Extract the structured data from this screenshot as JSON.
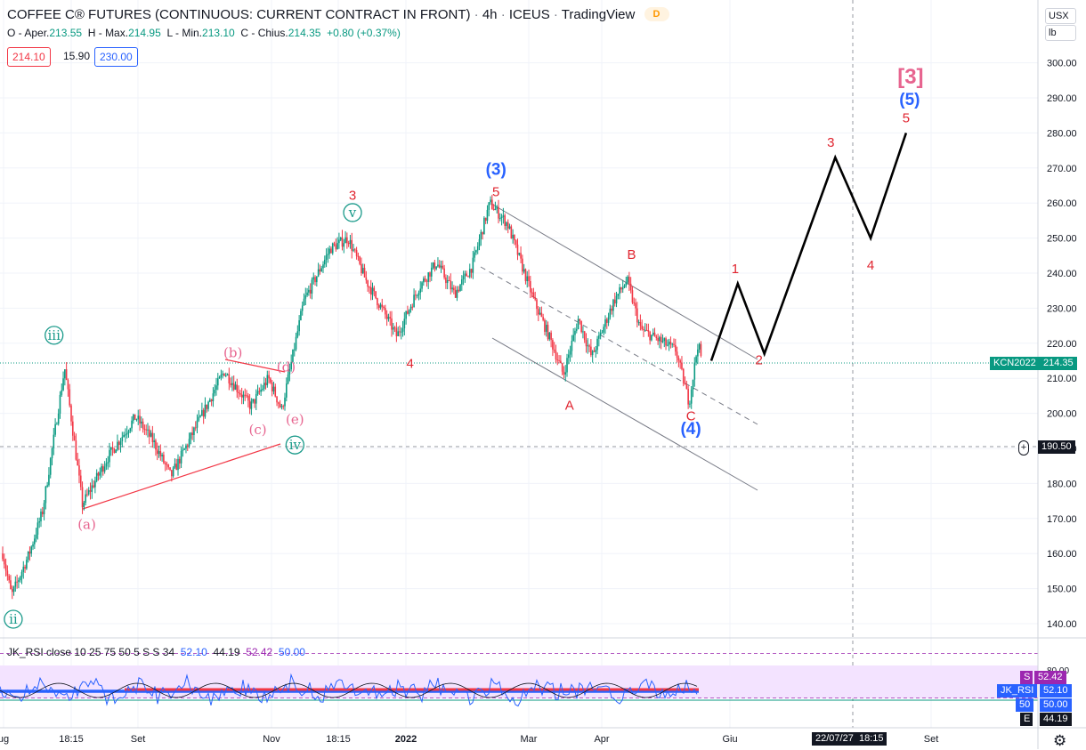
{
  "header": {
    "title": "COFFEE C® FUTURES (CONTINUOUS: CURRENT CONTRACT IN FRONT)",
    "interval": "4h",
    "exchange": "ICEUS",
    "platform": "TradingView",
    "badge": "D"
  },
  "ohlc": {
    "o_label": "O - Aper.",
    "o": "213.55",
    "h_label": "H - Max.",
    "h": "214.95",
    "l_label": "L - Min.",
    "l": "213.10",
    "c_label": "C - Chius.",
    "c": "214.35",
    "change": "+0.80 (+0.37%)"
  },
  "trade_box": {
    "bid": "214.10",
    "spread": "15.90",
    "ask": "230.00"
  },
  "price_scale": {
    "currency": "USX",
    "unit": "lb"
  },
  "colors": {
    "up": "#089981",
    "down": "#f23645",
    "wave_red": "#e0242f",
    "wave_pink": "#e7648f",
    "wave_teal": "#1a9a8a",
    "wave_blue": "#2962ff",
    "path": "#000000",
    "channel": "#787b86",
    "rsi_line": "#2962ff",
    "rsi_band": "#f3e3ff"
  },
  "chart_data": {
    "type": "candlestick",
    "title": "COFFEE C® FUTURES (CONTINUOUS: CURRENT CONTRACT IN FRONT)",
    "ylim": [
      134,
      312
    ],
    "y_ticks": [
      140,
      150,
      160,
      170,
      180,
      190,
      200,
      210,
      220,
      230,
      240,
      250,
      260,
      270,
      280,
      290,
      300
    ],
    "x_ticks": [
      "ug",
      "18:15",
      "Set",
      "Nov",
      "18:15",
      "2022",
      "Mar",
      "Apr",
      "Giu",
      "Set"
    ],
    "grid": true,
    "price_anchors": [
      {
        "t": 0.0,
        "p": 160
      },
      {
        "t": 1.0,
        "p": 148
      },
      {
        "t": 3.0,
        "p": 160
      },
      {
        "t": 4.5,
        "p": 172
      },
      {
        "t": 7.0,
        "p": 213
      },
      {
        "t": 9.0,
        "p": 174
      },
      {
        "t": 12.0,
        "p": 188
      },
      {
        "t": 15.0,
        "p": 199
      },
      {
        "t": 17.0,
        "p": 192
      },
      {
        "t": 19.0,
        "p": 182
      },
      {
        "t": 22.0,
        "p": 197
      },
      {
        "t": 25.0,
        "p": 212
      },
      {
        "t": 28.0,
        "p": 202
      },
      {
        "t": 30.0,
        "p": 210
      },
      {
        "t": 31.5,
        "p": 201
      },
      {
        "t": 34.0,
        "p": 232
      },
      {
        "t": 37.0,
        "p": 247
      },
      {
        "t": 39.0,
        "p": 250
      },
      {
        "t": 41.0,
        "p": 238
      },
      {
        "t": 43.0,
        "p": 229
      },
      {
        "t": 44.5,
        "p": 222
      },
      {
        "t": 47.0,
        "p": 236
      },
      {
        "t": 49.0,
        "p": 243
      },
      {
        "t": 51.0,
        "p": 234
      },
      {
        "t": 53.0,
        "p": 242
      },
      {
        "t": 55.0,
        "p": 260
      },
      {
        "t": 57.0,
        "p": 254
      },
      {
        "t": 60.0,
        "p": 232
      },
      {
        "t": 62.0,
        "p": 220
      },
      {
        "t": 63.3,
        "p": 211
      },
      {
        "t": 65.0,
        "p": 227
      },
      {
        "t": 66.5,
        "p": 216
      },
      {
        "t": 69.0,
        "p": 232
      },
      {
        "t": 70.5,
        "p": 238
      },
      {
        "t": 72.0,
        "p": 224
      },
      {
        "t": 74.0,
        "p": 221
      },
      {
        "t": 76.0,
        "p": 218
      },
      {
        "t": 77.5,
        "p": 203
      },
      {
        "t": 78.5,
        "p": 220
      },
      {
        "t": 79.0,
        "p": 214.35
      }
    ],
    "last_price": "214.35",
    "symbol_tag": "KCN2022",
    "crosshair": {
      "price": "190.50",
      "date": "22/07/27",
      "time": "18:15"
    },
    "projection_path": [
      {
        "t": 80,
        "p": 215
      },
      {
        "t": 83,
        "p": 237
      },
      {
        "t": 86,
        "p": 217
      },
      {
        "t": 94,
        "p": 273
      },
      {
        "t": 98,
        "p": 250
      },
      {
        "t": 102,
        "p": 280
      }
    ],
    "wave_labels": [
      {
        "text": "ii",
        "t": 1.2,
        "p": 140,
        "style": "teal-circle"
      },
      {
        "text": "iii",
        "t": 5.8,
        "p": 221,
        "style": "teal-circle"
      },
      {
        "text": "iv",
        "t": 33.0,
        "p": 189.7,
        "style": "teal-circle"
      },
      {
        "text": "v",
        "t": 39.5,
        "p": 256,
        "style": "teal-circle"
      },
      {
        "text": "(a)",
        "t": 9.5,
        "p": 167,
        "style": "pink"
      },
      {
        "text": "(b)",
        "t": 26.0,
        "p": 216,
        "style": "pink"
      },
      {
        "text": "(c)",
        "t": 28.8,
        "p": 194,
        "style": "pink"
      },
      {
        "text": "(d)",
        "t": 32.0,
        "p": 212,
        "style": "pink"
      },
      {
        "text": "(e)",
        "t": 33.0,
        "p": 197,
        "style": "pink"
      },
      {
        "text": "3",
        "t": 39.5,
        "p": 261,
        "style": "red"
      },
      {
        "text": "4",
        "t": 46.0,
        "p": 213,
        "style": "red"
      },
      {
        "text": "(3)",
        "t": 55.7,
        "p": 268,
        "style": "blue"
      },
      {
        "text": "5",
        "t": 55.7,
        "p": 262,
        "style": "red"
      },
      {
        "text": "B",
        "t": 71.0,
        "p": 244,
        "style": "red"
      },
      {
        "text": "A",
        "t": 64.0,
        "p": 201,
        "style": "red"
      },
      {
        "text": "C",
        "t": 77.7,
        "p": 198,
        "style": "red"
      },
      {
        "text": "(4)",
        "t": 77.7,
        "p": 194,
        "style": "blue"
      },
      {
        "text": "1",
        "t": 82.7,
        "p": 240,
        "style": "red"
      },
      {
        "text": "2",
        "t": 85.4,
        "p": 214,
        "style": "red"
      },
      {
        "text": "3",
        "t": 93.5,
        "p": 276,
        "style": "red"
      },
      {
        "text": "4",
        "t": 98.0,
        "p": 241,
        "style": "red"
      },
      {
        "text": "5",
        "t": 102.0,
        "p": 283,
        "style": "red"
      },
      {
        "text": "(5)",
        "t": 102.4,
        "p": 288,
        "style": "blue"
      },
      {
        "text": "[3]",
        "t": 102.5,
        "p": 294,
        "style": "pink-bracket"
      }
    ],
    "rsi": {
      "label": "JK_RSI close 10 25 75 50 5 S S 34",
      "values": [
        "52.10",
        "44.19",
        "52.42",
        "50.00"
      ],
      "level_tick": "80.00",
      "side_tags": [
        {
          "name": "S",
          "value": "52.42"
        },
        {
          "name": "JK_RSI",
          "value": "52.10"
        },
        {
          "name": "50",
          "value": "50.00"
        },
        {
          "name": "E",
          "value": "44.19"
        }
      ]
    }
  }
}
